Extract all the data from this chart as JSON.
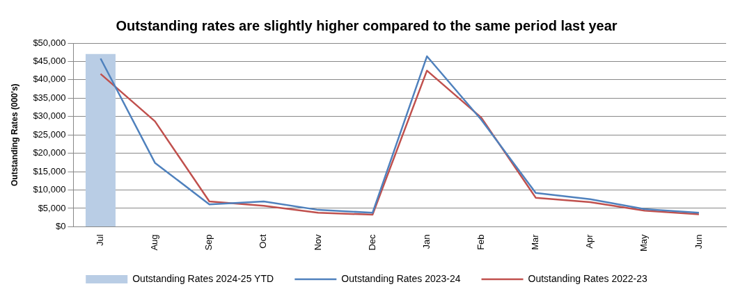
{
  "chart_data": {
    "type": "line",
    "title": "Outstanding rates are slightly higher compared to the same period last year",
    "ylabel": "Outstanding Rates (000's)",
    "categories": [
      "Jul",
      "Aug",
      "Sep",
      "Oct",
      "Nov",
      "Dec",
      "Jan",
      "Feb",
      "Mar",
      "Apr",
      "May",
      "Jun"
    ],
    "series": [
      {
        "name": "Outstanding Rates 2024-25 YTD",
        "type": "bar",
        "color": "#b9cde5",
        "values": [
          47000,
          null,
          null,
          null,
          null,
          null,
          null,
          null,
          null,
          null,
          null,
          null
        ]
      },
      {
        "name": "Outstanding Rates 2023-24",
        "color": "#4f81bd",
        "values": [
          45800,
          17400,
          6100,
          6900,
          4600,
          3800,
          46400,
          29100,
          9200,
          7500,
          4800,
          3800
        ]
      },
      {
        "name": "Outstanding Rates 2022-23",
        "color": "#c0504d",
        "values": [
          41600,
          28700,
          6900,
          5700,
          3800,
          3300,
          42500,
          29700,
          7900,
          6700,
          4400,
          3400
        ]
      }
    ],
    "ylim": [
      0,
      50000
    ],
    "yticks": [
      {
        "value": 0,
        "label": "$0"
      },
      {
        "value": 5000,
        "label": "$5,000"
      },
      {
        "value": 10000,
        "label": "$10,000"
      },
      {
        "value": 15000,
        "label": "$15,000"
      },
      {
        "value": 20000,
        "label": "$20,000"
      },
      {
        "value": 25000,
        "label": "$25,000"
      },
      {
        "value": 30000,
        "label": "$30,000"
      },
      {
        "value": 35000,
        "label": "$35,000"
      },
      {
        "value": 40000,
        "label": "$40,000"
      },
      {
        "value": 45000,
        "label": "$45,000"
      },
      {
        "value": 50000,
        "label": "$50,000"
      }
    ],
    "grid": "y",
    "legend": "bottom",
    "marker": "none",
    "line_style": "solid"
  }
}
